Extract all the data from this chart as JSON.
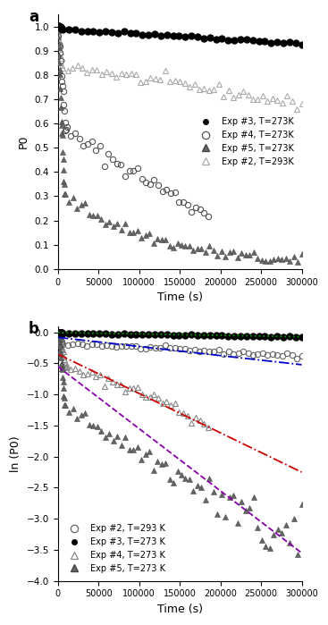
{
  "panel_a_label": "a",
  "panel_b_label": "b",
  "xlabel": "Time (s)",
  "panel_a_ylabel": "P0",
  "panel_b_ylabel": "ln (P0)",
  "panel_a_ylim": [
    0.0,
    1.05
  ],
  "panel_b_ylim": [
    -4.0,
    0.1
  ],
  "xlim": [
    0,
    300000
  ],
  "xticks": [
    0,
    50000,
    100000,
    150000,
    200000,
    250000,
    300000
  ],
  "xtick_labels": [
    "0",
    "50000",
    "100000",
    "150000",
    "200000",
    "250000",
    "300000"
  ],
  "exp3_label_a": "Exp #3, T=273K",
  "exp4_label_a": "Exp #4, T=273K",
  "exp5_label_a": "Exp #5, T=273K",
  "exp2_label_a": "Exp #2, T=293K",
  "exp2_label_b": "Exp #2, T=293 K",
  "exp3_label_b": "Exp #3, T=273 K",
  "exp4_label_b": "Exp #4, T=273 K",
  "exp5_label_b": "Exp #5, T=273 K",
  "fit_exp3_color": "#009900",
  "fit_exp4_color": "#0000cc",
  "fit_exp2_color": "#cc0000",
  "fit_exp5_color": "#8800aa",
  "panel_a_yticks": [
    0.0,
    0.1,
    0.2,
    0.3,
    0.4,
    0.5,
    0.6,
    0.7,
    0.8,
    0.9,
    1.0
  ],
  "panel_b_yticks": [
    -4.0,
    -3.5,
    -3.0,
    -2.5,
    -2.0,
    -1.5,
    -1.0,
    -0.5,
    0.0
  ]
}
